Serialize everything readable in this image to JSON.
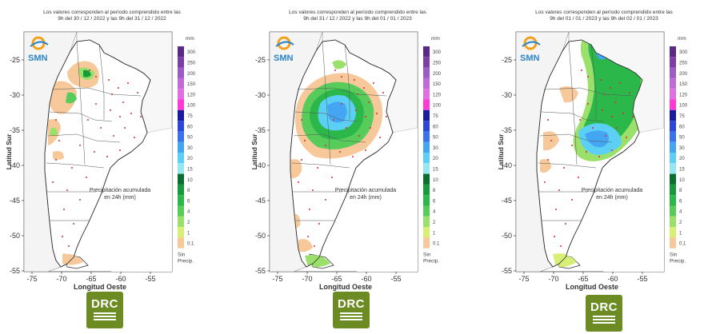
{
  "legend": {
    "unit": "mm",
    "values": [
      "300",
      "250",
      "200",
      "150",
      "120",
      "100",
      "75",
      "60",
      "50",
      "30",
      "20",
      "15",
      "10",
      "8",
      "6",
      "4",
      "2",
      "1",
      "0.1"
    ],
    "no_precip": [
      "Sin",
      "Precip."
    ],
    "colors": [
      "#5b2a86",
      "#7b3fa6",
      "#9b5cc4",
      "#c06ad8",
      "#e070e0",
      "#ff3ad2",
      "#1a1aa0",
      "#2b46d8",
      "#3a72ee",
      "#44a6f2",
      "#5cd0f4",
      "#96e6f4",
      "#0a6f2e",
      "#169a3c",
      "#2cb74a",
      "#57cc5a",
      "#9be06a",
      "#d7ef74",
      "#f6c89a"
    ]
  },
  "panels": [
    {
      "title_line1": "Los valores corresponden al período comprendido entre las",
      "title_line2": "9h del 30 / 12 / 2022  y las 9h del 31 / 12 / 2022",
      "note_line1": "Precipitación acumulada",
      "note_line2": "en 24h (mm)"
    },
    {
      "title_line1": "Los valores corresponden al período comprendido entre las",
      "title_line2": "9h del 31 / 12 / 2022  y las 9h del 01 / 01 / 2023",
      "note_line1": "Precipitación acumulada",
      "note_line2": "en 24h (mm)"
    },
    {
      "title_line1": "Los valores corresponden al período comprendido entre las",
      "title_line2": "9h del 01 / 01 / 2023  y las 9h del 02 / 01 / 2023",
      "note_line1": "Precipitación acumulada",
      "note_line2": "en 24h (mm)"
    }
  ],
  "axes": {
    "ylabel": "Latitud Sur",
    "xlabel": "Longitud Oeste",
    "yticks": [
      "-25",
      "-30",
      "-35",
      "-40",
      "-45",
      "-50",
      "-55"
    ],
    "xticks": [
      "-75",
      "-70",
      "-65",
      "-60",
      "-55"
    ]
  },
  "logo": {
    "text": "SMN"
  },
  "drc": {
    "text": "DRC"
  }
}
